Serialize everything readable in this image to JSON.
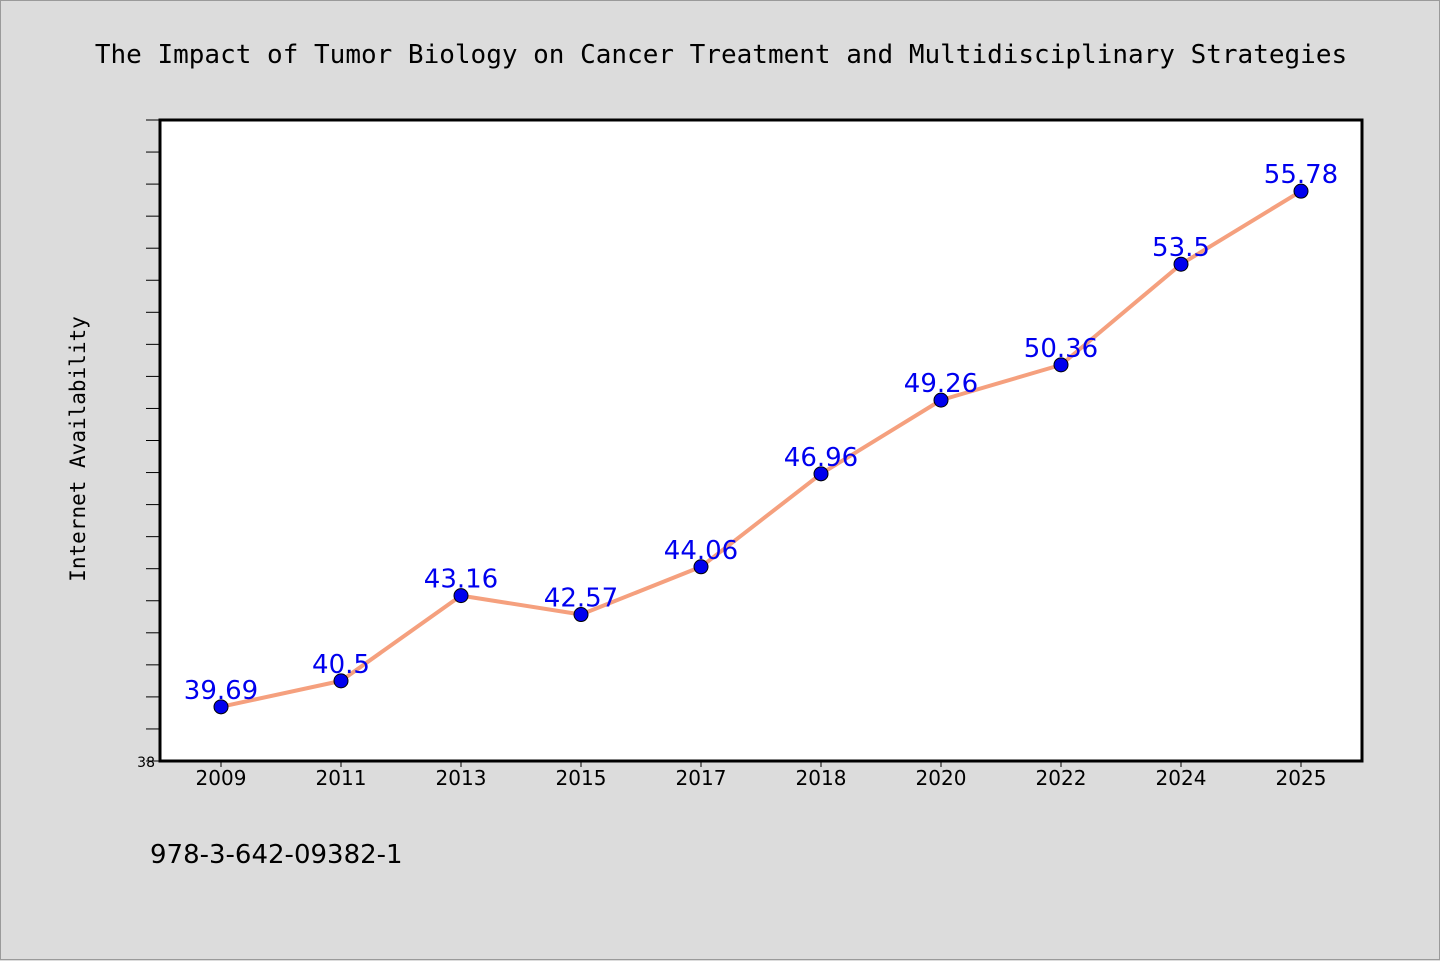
{
  "footer_code": "978-3-642-09382-1",
  "colors": {
    "background": "#dcdcdc",
    "plot_background": "#ffffff",
    "line": "#f5a07e",
    "marker": "#0000ee",
    "data_label": "#0000ee",
    "axis": "#000000"
  },
  "chart_data": {
    "type": "line",
    "title": "The Impact of Tumor Biology on Cancer Treatment and Multidisciplinary Strategies",
    "xlabel": "",
    "ylabel": "Internet Availability",
    "categories": [
      "2009",
      "2011",
      "2013",
      "2015",
      "2017",
      "2018",
      "2020",
      "2022",
      "2024",
      "2025"
    ],
    "series": [
      {
        "values": [
          39.69,
          40.5,
          43.16,
          42.57,
          44.06,
          46.96,
          49.26,
          50.36,
          53.5,
          55.78
        ]
      }
    ],
    "data_labels": [
      "39.69",
      "40.5",
      "43.16",
      "42.57",
      "44.06",
      "46.96",
      "49.26",
      "50.36",
      "53.5",
      "55.78"
    ],
    "ylim": [
      38,
      58
    ],
    "y_tick_labels": [
      {
        "value": 38,
        "label": "38"
      }
    ],
    "y_minor_tick_step": 1,
    "grid": false,
    "legend": "none"
  }
}
